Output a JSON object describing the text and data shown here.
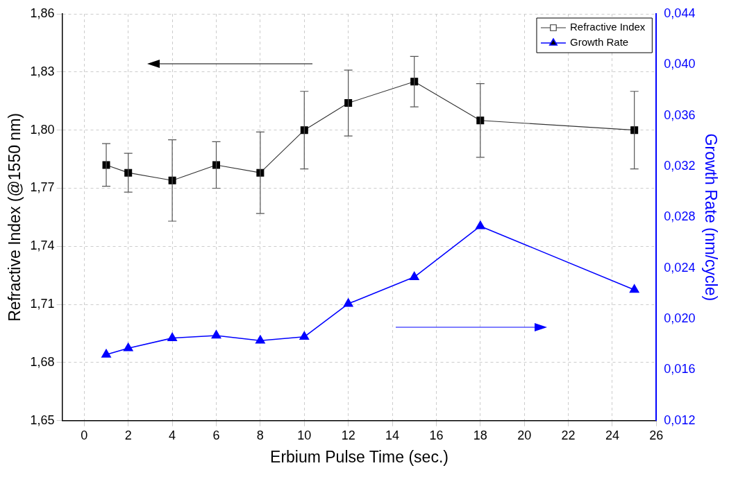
{
  "chart_data": {
    "type": "line",
    "xlabel": "Erbium Pulse Time (sec.)",
    "ylabel": "Refractive Index (@1550 nm)",
    "y2label": "Growth Rate (nm/cycle)",
    "x": [
      1,
      2,
      4,
      6,
      8,
      10,
      12,
      15,
      18,
      25
    ],
    "series": [
      {
        "name": "Refractive Index",
        "color": "#000000",
        "marker": "square",
        "values": [
          1.782,
          1.778,
          1.774,
          1.782,
          1.778,
          1.8,
          1.814,
          1.825,
          1.805,
          1.8
        ],
        "errors": [
          0.011,
          0.01,
          0.021,
          0.012,
          0.021,
          0.02,
          0.017,
          0.013,
          0.019,
          0.02
        ]
      },
      {
        "name": "Growth Rate",
        "color": "#0000ff",
        "marker": "triangle",
        "axis": "y2",
        "values": [
          0.0172,
          0.0177,
          0.0185,
          0.0187,
          0.0183,
          0.0186,
          0.0212,
          0.0233,
          0.0273,
          0.0223
        ]
      }
    ],
    "xlim": [
      -1,
      26
    ],
    "xticks": [
      0,
      2,
      4,
      6,
      8,
      10,
      12,
      14,
      16,
      18,
      20,
      22,
      24,
      26
    ],
    "ylim": [
      1.65,
      1.86
    ],
    "yticks": [
      {
        "value": 1.65,
        "label": "1,65"
      },
      {
        "value": 1.68,
        "label": "1,68"
      },
      {
        "value": 1.71,
        "label": "1,71"
      },
      {
        "value": 1.74,
        "label": "1,74"
      },
      {
        "value": 1.77,
        "label": "1,77"
      },
      {
        "value": 1.8,
        "label": "1,80"
      },
      {
        "value": 1.83,
        "label": "1,83"
      },
      {
        "value": 1.86,
        "label": "1,86"
      }
    ],
    "y2lim": [
      0.012,
      0.044
    ],
    "y2ticks": [
      {
        "value": 0.012,
        "label": "0,012"
      },
      {
        "value": 0.016,
        "label": "0,016"
      },
      {
        "value": 0.02,
        "label": "0,020"
      },
      {
        "value": 0.024,
        "label": "0,024"
      },
      {
        "value": 0.028,
        "label": "0,028"
      },
      {
        "value": 0.032,
        "label": "0,032"
      },
      {
        "value": 0.036,
        "label": "0,036"
      },
      {
        "value": 0.04,
        "label": "0,040"
      },
      {
        "value": 0.044,
        "label": "0,044"
      }
    ],
    "grid": true,
    "legend": "top right"
  }
}
